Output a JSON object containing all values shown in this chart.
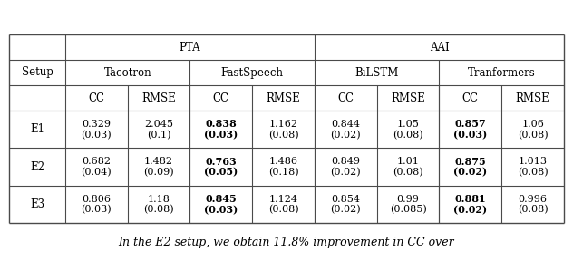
{
  "caption_text": "In the E2 setup, we obtain 11.8% improvement in CC over",
  "header_level1": [
    "PTA",
    "AAI"
  ],
  "header_level2": [
    "Tacotron",
    "FastSpeech",
    "BiLSTM",
    "Tranformers"
  ],
  "header_level3": [
    "CC",
    "RMSE",
    "CC",
    "RMSE",
    "CC",
    "RMSE",
    "CC",
    "RMSE"
  ],
  "row_labels": [
    "E1",
    "E2",
    "E3"
  ],
  "rows": [
    [
      [
        "0.329",
        "(0.03)"
      ],
      [
        "2.045",
        "(0.1)"
      ],
      [
        "0.838",
        "(0.03)"
      ],
      [
        "1.162",
        "(0.08)"
      ],
      [
        "0.844",
        "(0.02)"
      ],
      [
        "1.05",
        "(0.08)"
      ],
      [
        "0.857",
        "(0.03)"
      ],
      [
        "1.06",
        "(0.08)"
      ]
    ],
    [
      [
        "0.682",
        "(0.04)"
      ],
      [
        "1.482",
        "(0.09)"
      ],
      [
        "0.763",
        "(0.05)"
      ],
      [
        "1.486",
        "(0.18)"
      ],
      [
        "0.849",
        "(0.02)"
      ],
      [
        "1.01",
        "(0.08)"
      ],
      [
        "0.875",
        "(0.02)"
      ],
      [
        "1.013",
        "(0.08)"
      ]
    ],
    [
      [
        "0.806",
        "(0.03)"
      ],
      [
        "1.18",
        "(0.08)"
      ],
      [
        "0.845",
        "(0.03)"
      ],
      [
        "1.124",
        "(0.08)"
      ],
      [
        "0.854",
        "(0.02)"
      ],
      [
        "0.99",
        "(0.085)"
      ],
      [
        "0.881",
        "(0.02)"
      ],
      [
        "0.996",
        "(0.08)"
      ]
    ]
  ],
  "bold_cols": [
    2,
    6
  ],
  "bg_color": "#ffffff",
  "line_color": "#4a4a4a",
  "font_size": 8.0,
  "header_font_size": 8.5,
  "caption_font_size": 9.0,
  "fig_width": 6.32,
  "fig_height": 2.88,
  "dpi": 100
}
